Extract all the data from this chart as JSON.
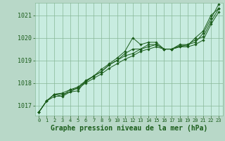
{
  "background_color": "#b8d8c8",
  "plot_bg_color": "#c8ece0",
  "grid_color": "#88b898",
  "line_color": "#1a5c1a",
  "xlabel": "Graphe pression niveau de la mer (hPa)",
  "xlabel_fontsize": 7,
  "tick_fontsize": 6,
  "xlim": [
    -0.5,
    23.5
  ],
  "ylim": [
    1016.55,
    1021.55
  ],
  "yticks": [
    1017,
    1018,
    1019,
    1020,
    1021
  ],
  "xticks": [
    0,
    1,
    2,
    3,
    4,
    5,
    6,
    7,
    8,
    9,
    10,
    11,
    12,
    13,
    14,
    15,
    16,
    17,
    18,
    19,
    20,
    21,
    22,
    23
  ],
  "xtick_labels": [
    "0",
    "1",
    "2",
    "3",
    "4",
    "5",
    "6",
    "7",
    "8",
    "9",
    "10",
    "11",
    "12",
    "13",
    "14",
    "15",
    "16",
    "17",
    "18",
    "19",
    "20",
    "21",
    "22",
    "23"
  ],
  "series": [
    [
      1016.7,
      1017.2,
      1017.5,
      1017.4,
      1017.6,
      1017.65,
      1018.1,
      1018.3,
      1018.6,
      1018.85,
      1019.1,
      1019.4,
      1020.0,
      1019.7,
      1019.8,
      1019.8,
      1019.5,
      1019.5,
      1019.65,
      1019.65,
      1020.0,
      1020.3,
      1021.0,
      1021.3
    ],
    [
      1016.7,
      1017.2,
      1017.5,
      1017.55,
      1017.7,
      1017.75,
      1018.0,
      1018.2,
      1018.4,
      1018.65,
      1018.85,
      1019.05,
      1019.2,
      1019.4,
      1019.5,
      1019.6,
      1019.5,
      1019.5,
      1019.6,
      1019.6,
      1019.7,
      1019.9,
      1020.6,
      1021.15
    ],
    [
      1016.7,
      1017.2,
      1017.5,
      1017.5,
      1017.6,
      1017.8,
      1018.05,
      1018.3,
      1018.5,
      1018.8,
      1019.0,
      1019.3,
      1019.5,
      1019.5,
      1019.7,
      1019.7,
      1019.5,
      1019.5,
      1019.6,
      1019.7,
      1019.8,
      1020.2,
      1020.85,
      1021.5
    ],
    [
      1016.7,
      1017.2,
      1017.4,
      1017.42,
      1017.7,
      1017.82,
      1018.1,
      1018.3,
      1018.5,
      1018.8,
      1019.0,
      1019.2,
      1019.3,
      1019.5,
      1019.6,
      1019.7,
      1019.5,
      1019.5,
      1019.7,
      1019.7,
      1019.9,
      1020.05,
      1020.72,
      1021.3
    ]
  ]
}
